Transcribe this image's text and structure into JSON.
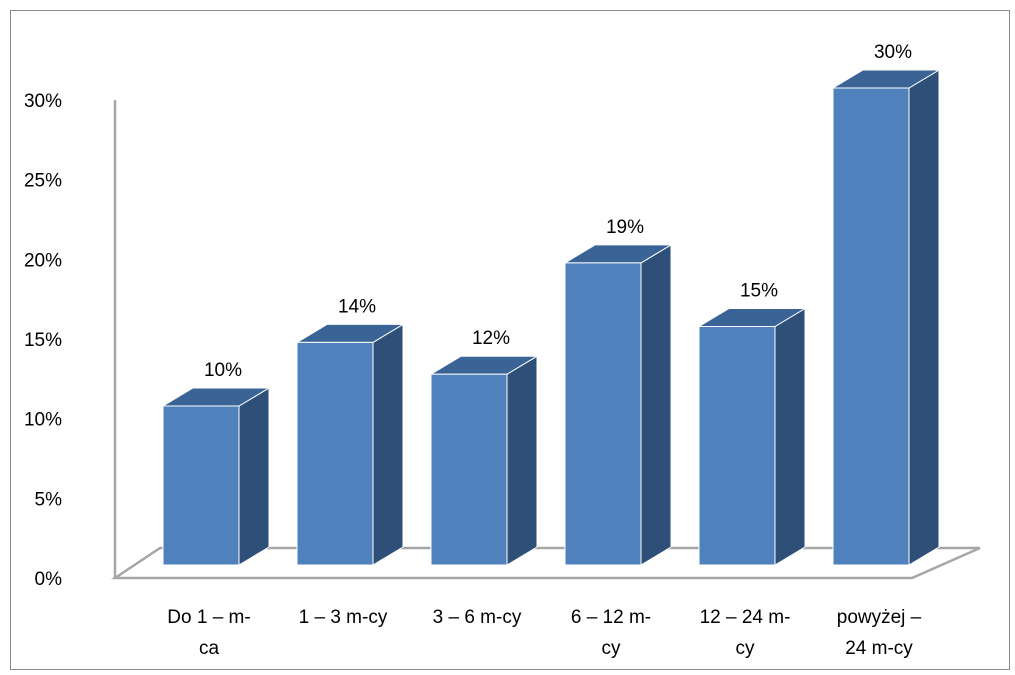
{
  "chart_data": {
    "type": "bar",
    "title": "",
    "xlabel": "",
    "ylabel": "",
    "ylim": [
      0,
      30
    ],
    "yticks": [
      "0%",
      "5%",
      "10%",
      "15%",
      "20%",
      "25%",
      "30%"
    ],
    "categories": [
      [
        "Do 1 – m-",
        "ca"
      ],
      [
        "1 – 3 m-cy"
      ],
      [
        "3 – 6 m-cy"
      ],
      [
        "6 – 12 m-",
        "cy"
      ],
      [
        "12 – 24 m-",
        "cy"
      ],
      [
        "powyżej –",
        "24 m-cy"
      ]
    ],
    "values": [
      10,
      14,
      12,
      19,
      15,
      30
    ],
    "value_labels": [
      "10%",
      "14%",
      "12%",
      "19%",
      "15%",
      "30%"
    ],
    "legend": "none",
    "grid": false,
    "style": "3d",
    "colors": {
      "bar_front": "#4F81BD",
      "bar_side": "#2E4F77",
      "bar_top": "#3A6496",
      "bar_edge": "#ffffff",
      "floor": "#ffffff",
      "axis": "#A6A6A6",
      "frame": "#8C8C8C"
    }
  }
}
